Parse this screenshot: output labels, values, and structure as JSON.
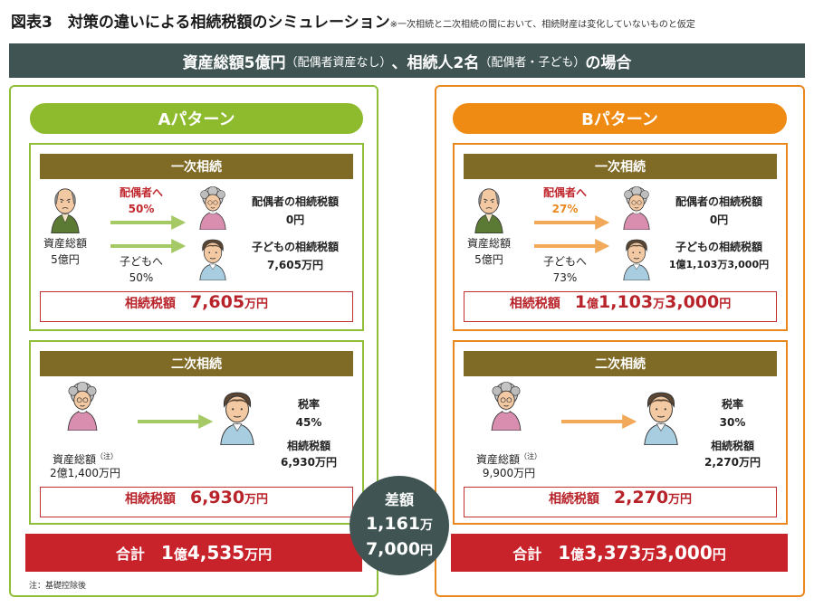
{
  "header": {
    "title": "図表3　対策の違いによる相続税額のシミュレーション",
    "note": "※一次相続と二次相続の間において、相続財産は変化していないものと仮定",
    "banner_main_1": "資産総額5億円",
    "banner_paren_1": "（配偶者資産なし）",
    "banner_main_2": "、相続人2名",
    "banner_paren_2": "（配偶者・子ども）",
    "banner_main_3": "の場合"
  },
  "colors": {
    "pattern_a": "#8dbb2d",
    "pattern_b": "#ef8a12",
    "header_band": "#3f5453",
    "stage_head": "#7f6a26",
    "tax_red": "#c0282e"
  },
  "pattern_a": {
    "title": "Aパターン",
    "first": {
      "head": "一次相続",
      "to_spouse_label": "配偶者へ",
      "to_spouse_pct": "50%",
      "to_child_label": "子どもへ",
      "to_child_pct": "50%",
      "assets_label": "資産総額",
      "assets_value": "5億円",
      "spouse_tax_label": "配偶者の相続税額",
      "spouse_tax_value": "0円",
      "child_tax_label": "子どもの相続税額",
      "child_tax_value": "7,605万円",
      "tax_label": "相続税額",
      "tax_num": "7,605",
      "tax_unit": "万円"
    },
    "second": {
      "head": "二次相続",
      "assets_label": "資産総額",
      "assets_note": "（注）",
      "assets_value": "2億1,400万円",
      "rate_label": "税率",
      "rate_value": "45%",
      "tax_small_label": "相続税額",
      "tax_small_value": "6,930万円",
      "tax_label": "相続税額",
      "tax_num": "6,930",
      "tax_unit": "万円"
    },
    "total_label": "合計",
    "total_p1": "1",
    "total_u1": "億",
    "total_p2": "4,535",
    "total_u2": "万円"
  },
  "pattern_b": {
    "title": "Bパターン",
    "first": {
      "head": "一次相続",
      "to_spouse_label": "配偶者へ",
      "to_spouse_pct": "27%",
      "to_child_label": "子どもへ",
      "to_child_pct": "73%",
      "assets_label": "資産総額",
      "assets_value": "5億円",
      "spouse_tax_label": "配偶者の相続税額",
      "spouse_tax_value": "0円",
      "child_tax_label": "子どもの相続税額",
      "child_tax_value": "1億1,103万3,000円",
      "tax_label": "相続税額",
      "tax_p1": "1",
      "tax_u1": "億",
      "tax_p2": "1,103",
      "tax_u2": "万",
      "tax_p3": "3,000",
      "tax_u3": "円"
    },
    "second": {
      "head": "二次相続",
      "assets_label": "資産総額",
      "assets_note": "（注）",
      "assets_value": "9,900万円",
      "rate_label": "税率",
      "rate_value": "30%",
      "tax_small_label": "相続税額",
      "tax_small_value": "2,270万円",
      "tax_label": "相続税額",
      "tax_num": "2,270",
      "tax_unit": "万円"
    },
    "total_label": "合計",
    "total_p1": "1",
    "total_u1": "億",
    "total_p2": "3,373",
    "total_u2": "万",
    "total_p3": "3,000",
    "total_u3": "円"
  },
  "difference": {
    "label": "差額",
    "l2_num": "1,161",
    "l2_unit": "万",
    "l3_num": "7,000",
    "l3_unit": "円"
  },
  "footnote": "注：基礎控除後"
}
